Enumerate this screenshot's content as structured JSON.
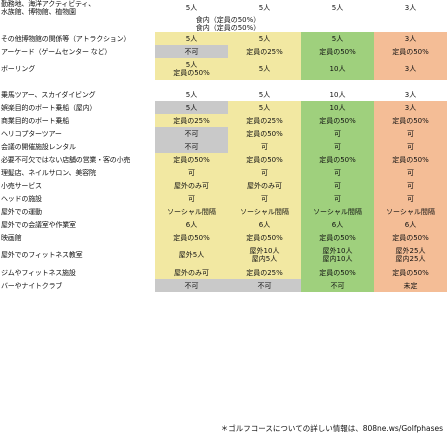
{
  "colors": {
    "grey": "#c9c9c9",
    "yellow": "#f2e8a2",
    "green": "#9fd07d",
    "salmon": "#f4bd96"
  },
  "rows": [
    {
      "label": [
        "勤務地、海洋アクティビティ、",
        "水族館、博物館、植物園"
      ],
      "cells": [
        [
          "5人"
        ],
        [
          "5人"
        ],
        [
          "5人"
        ],
        [
          "3人"
        ]
      ],
      "fills": [
        "white",
        "white",
        "white",
        "white"
      ]
    },
    {
      "label": [
        ""
      ],
      "cells": [
        [
          "食内（定員の50%）",
          "食内（定員の50%）"
        ]
      ],
      "span": 2,
      "fills": [
        "white"
      ]
    },
    {
      "label": [
        "その他博物館の関係等（アトラクション）"
      ],
      "cells": [
        [
          "5人"
        ],
        [
          "5人"
        ],
        [
          "5人"
        ],
        [
          "3人"
        ]
      ],
      "fills": [
        "yellow",
        "yellow",
        "green",
        "salmon"
      ]
    },
    {
      "label": [
        "アーケード（ゲームセンター など）"
      ],
      "cells": [
        [
          "不可"
        ],
        [
          "定員の25%"
        ],
        [
          "定員の50%"
        ],
        [
          "定員の50%"
        ]
      ],
      "fills": [
        "grey",
        "yellow",
        "green",
        "salmon"
      ]
    },
    {
      "label": [
        "ボーリング"
      ],
      "cells": [
        [
          "5人",
          "定員の50%"
        ],
        [
          "5人"
        ],
        [
          "10人"
        ],
        [
          "3人"
        ]
      ],
      "fills": [
        "yellow",
        "yellow",
        "green",
        "salmon"
      ]
    },
    {
      "label": [
        ""
      ],
      "cells": [
        [
          ""
        ],
        [
          ""
        ],
        [
          ""
        ],
        [
          ""
        ]
      ],
      "fills": [
        "white",
        "white",
        "white",
        "white"
      ],
      "sep": true
    },
    {
      "label": [
        "乗馬ツアー、スカイダイビング"
      ],
      "cells": [
        [
          "5人"
        ],
        [
          "5人"
        ],
        [
          "10人"
        ],
        [
          "3人"
        ]
      ],
      "fills": [
        "white",
        "white",
        "white",
        "white"
      ]
    },
    {
      "label": [
        "娯楽目的のボート乗船（屋内）"
      ],
      "cells": [
        [
          "5人"
        ],
        [
          "5人"
        ],
        [
          "10人"
        ],
        [
          "3人"
        ]
      ],
      "fills": [
        "grey",
        "yellow",
        "green",
        "salmon"
      ]
    },
    {
      "label": [
        "商業目的のボート乗船"
      ],
      "cells": [
        [
          "定員の25%"
        ],
        [
          "定員の25%"
        ],
        [
          "定員の50%"
        ],
        [
          "定員の50%"
        ]
      ],
      "fills": [
        "yellow",
        "yellow",
        "green",
        "salmon"
      ]
    },
    {
      "label": [
        "ヘリコプターツアー"
      ],
      "cells": [
        [
          "不可"
        ],
        [
          "定員の50%"
        ],
        [
          "可"
        ],
        [
          "可"
        ]
      ],
      "fills": [
        "grey",
        "yellow",
        "green",
        "salmon"
      ]
    },
    {
      "label": [
        "会議の開催施設レンタル"
      ],
      "cells": [
        [
          "不可"
        ],
        [
          "可"
        ],
        [
          "可"
        ],
        [
          "可"
        ]
      ],
      "fills": [
        "grey",
        "yellow",
        "green",
        "salmon"
      ]
    },
    {
      "label": [
        "必要不可欠ではない店舗の営業・客の小売"
      ],
      "cells": [
        [
          "定員の50%"
        ],
        [
          "定員の50%"
        ],
        [
          "定員の50%"
        ],
        [
          "定員の50%"
        ]
      ],
      "fills": [
        "yellow",
        "yellow",
        "green",
        "salmon"
      ]
    },
    {
      "label": [
        "理髪店、ネイルサロン、美容院"
      ],
      "cells": [
        [
          "可"
        ],
        [
          "可"
        ],
        [
          "可"
        ],
        [
          "可"
        ]
      ],
      "fills": [
        "yellow",
        "yellow",
        "green",
        "salmon"
      ]
    },
    {
      "label": [
        "小売サービス"
      ],
      "cells": [
        [
          "屋外のみ可"
        ],
        [
          "屋外のみ可"
        ],
        [
          "可"
        ],
        [
          "可"
        ]
      ],
      "fills": [
        "yellow",
        "yellow",
        "green",
        "salmon"
      ]
    },
    {
      "label": [
        "ヘッドの施設"
      ],
      "cells": [
        [
          "可"
        ],
        [
          "可"
        ],
        [
          "可"
        ],
        [
          "可"
        ]
      ],
      "fills": [
        "yellow",
        "yellow",
        "green",
        "salmon"
      ]
    },
    {
      "label": [
        "屋外での運動"
      ],
      "cells": [
        [
          "ソーシャル間隔"
        ],
        [
          "ソーシャル間隔"
        ],
        [
          "ソーシャル間隔"
        ],
        [
          "ソーシャル間隔"
        ]
      ],
      "fills": [
        "yellow",
        "yellow",
        "green",
        "salmon"
      ]
    },
    {
      "label": [
        "屋外での会議室や作業室"
      ],
      "cells": [
        [
          "6人"
        ],
        [
          "6人"
        ],
        [
          "6人"
        ],
        [
          "6人"
        ]
      ],
      "fills": [
        "yellow",
        "yellow",
        "green",
        "salmon"
      ]
    },
    {
      "label": [
        "映画館"
      ],
      "cells": [
        [
          "定員の50%"
        ],
        [
          "定員の50%"
        ],
        [
          "定員の50%"
        ],
        [
          "定員の50%"
        ]
      ],
      "fills": [
        "yellow",
        "yellow",
        "green",
        "salmon"
      ]
    },
    {
      "label": [
        "屋外でのフィットネス教室"
      ],
      "cells": [
        [
          "屋外5人"
        ],
        [
          "屋外10人",
          "屋内5人"
        ],
        [
          "屋外10人",
          "屋内10人"
        ],
        [
          "屋外25人",
          "屋内25人"
        ]
      ],
      "fills": [
        "yellow",
        "yellow",
        "green",
        "salmon"
      ]
    },
    {
      "label": [
        "ジムやフィットネス施設"
      ],
      "cells": [
        [
          "屋外のみ可"
        ],
        [
          "定員の25%"
        ],
        [
          "定員の50%"
        ],
        [
          "定員の50%"
        ]
      ],
      "fills": [
        "yellow",
        "yellow",
        "green",
        "salmon"
      ]
    },
    {
      "label": [
        "バーやナイトクラブ"
      ],
      "cells": [
        [
          "不可"
        ],
        [
          "不可"
        ],
        [
          "不可"
        ],
        [
          "未定"
        ]
      ],
      "fills": [
        "grey",
        "grey",
        "green",
        "salmon"
      ]
    }
  ],
  "footnote": "＊ゴルフコースについての詳しい情報は、808ne.ws/Golfphases"
}
